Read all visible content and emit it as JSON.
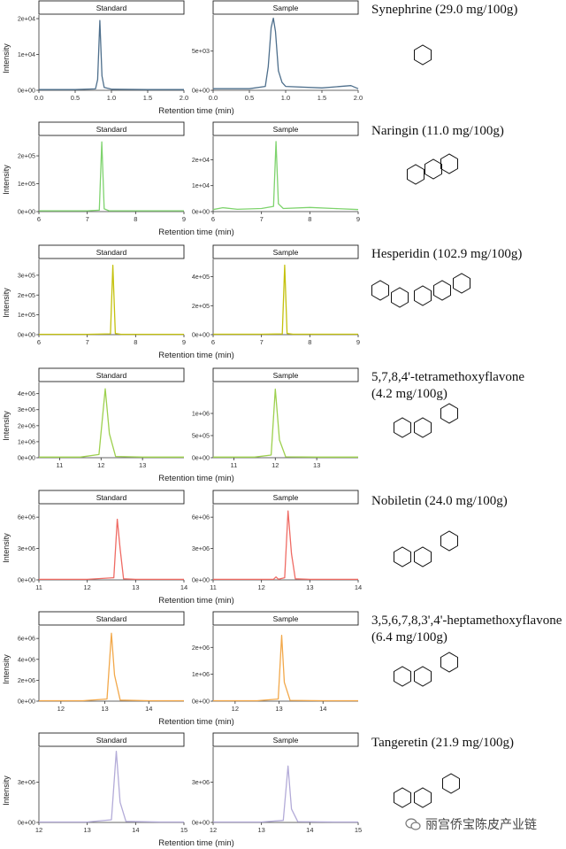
{
  "colors": {
    "synephrine": "#4e6f8c",
    "naringin": "#7ed36d",
    "hesperidin": "#c4c10d",
    "tetramethoxyflavone": "#9dd04e",
    "nobiletin": "#ef6b64",
    "heptamethoxyflavone": "#f2a84a",
    "tangeretin": "#b3abd8"
  },
  "chart_data": [
    {
      "type": "line",
      "id": "synephrine",
      "compound_label": "Synephrine (29.0 mg/100g)",
      "xlabel": "Retention time (min)",
      "ylabel": "Intensity",
      "panels": [
        {
          "strip": "Standard",
          "xlim": [
            0,
            2
          ],
          "xticks": [
            "0.0",
            "0.5",
            "1.0",
            "1.5",
            "2.0"
          ],
          "ylim": [
            0,
            21000
          ],
          "yticks": [
            0,
            10000,
            20000
          ],
          "ytick_labels": [
            "0e+00",
            "1e+04",
            "2e+04"
          ],
          "x": [
            0,
            0.5,
            0.78,
            0.81,
            0.84,
            0.87,
            0.9,
            1.0,
            1.5,
            2.0
          ],
          "y": [
            200,
            200,
            400,
            3000,
            19500,
            4000,
            800,
            300,
            200,
            200
          ]
        },
        {
          "strip": "Sample",
          "xlim": [
            0,
            2
          ],
          "xticks": [
            "0.0",
            "0.5",
            "1.0",
            "1.5",
            "2.0"
          ],
          "ylim": [
            0,
            9600
          ],
          "yticks": [
            0,
            5000
          ],
          "ytick_labels": [
            "0e+00",
            "5e+03"
          ],
          "x": [
            0,
            0.5,
            0.72,
            0.76,
            0.8,
            0.83,
            0.86,
            0.9,
            0.95,
            1.0,
            1.5,
            1.9,
            2.0
          ],
          "y": [
            200,
            200,
            500,
            3000,
            8000,
            9200,
            7500,
            2500,
            1000,
            500,
            300,
            600,
            200
          ]
        }
      ]
    },
    {
      "type": "line",
      "id": "naringin",
      "compound_label": "Naringin (11.0 mg/100g)",
      "xlabel": "Retention time (min)",
      "ylabel": "Intensity",
      "panels": [
        {
          "strip": "Standard",
          "xlim": [
            6,
            9
          ],
          "xticks": [
            "6",
            "7",
            "8",
            "9"
          ],
          "ylim": [
            0,
            270000
          ],
          "yticks": [
            0,
            100000,
            200000
          ],
          "ytick_labels": [
            "0e+00",
            "1e+05",
            "2e+05"
          ],
          "x": [
            6,
            7.0,
            7.25,
            7.3,
            7.35,
            7.45,
            8.0,
            9.0
          ],
          "y": [
            3000,
            3000,
            5000,
            250000,
            10000,
            3000,
            3000,
            3000
          ]
        },
        {
          "strip": "Sample",
          "xlim": [
            6,
            9
          ],
          "xticks": [
            "6",
            "7",
            "8",
            "9"
          ],
          "ylim": [
            0,
            29000
          ],
          "yticks": [
            0,
            10000,
            20000
          ],
          "ytick_labels": [
            "0e+00",
            "1e+04",
            "2e+04"
          ],
          "x": [
            6,
            6.2,
            6.5,
            7.0,
            7.25,
            7.3,
            7.35,
            7.45,
            8.0,
            8.5,
            9.0
          ],
          "y": [
            800,
            1500,
            900,
            1200,
            2000,
            27000,
            3000,
            1200,
            1600,
            1200,
            800
          ]
        }
      ]
    },
    {
      "type": "line",
      "id": "hesperidin",
      "compound_label": "Hesperidin (102.9 mg/100g)",
      "xlabel": "Retention time (min)",
      "ylabel": "Intensity",
      "panels": [
        {
          "strip": "Standard",
          "xlim": [
            6,
            9
          ],
          "xticks": [
            "6",
            "7",
            "8",
            "9"
          ],
          "ylim": [
            0,
            380000
          ],
          "yticks": [
            0,
            100000,
            200000,
            300000
          ],
          "ytick_labels": [
            "0e+00",
            "1e+05",
            "2e+05",
            "3e+05"
          ],
          "x": [
            6,
            7.0,
            7.48,
            7.53,
            7.58,
            7.7,
            8.0,
            9.0
          ],
          "y": [
            2000,
            2000,
            4000,
            350000,
            6000,
            2000,
            2000,
            2000
          ]
        },
        {
          "strip": "Sample",
          "xlim": [
            6,
            9
          ],
          "xticks": [
            "6",
            "7",
            "8",
            "9"
          ],
          "ylim": [
            0,
            520000
          ],
          "yticks": [
            0,
            200000,
            400000
          ],
          "ytick_labels": [
            "0e+00",
            "2e+05",
            "4e+05"
          ],
          "x": [
            6,
            7.0,
            7.43,
            7.48,
            7.53,
            7.65,
            8.0,
            9.0
          ],
          "y": [
            3000,
            3000,
            5000,
            480000,
            8000,
            3000,
            3000,
            3000
          ]
        }
      ]
    },
    {
      "type": "line",
      "id": "tetramethoxyflavone",
      "compound_label": "5,7,8,4'-tetramethoxyflavone",
      "compound_sub": "(4.2 mg/100g)",
      "xlabel": "Retention time (min)",
      "ylabel": "Intensity",
      "panels": [
        {
          "strip": "Standard",
          "xlim": [
            10.5,
            14
          ],
          "xticks": [
            "11",
            "12",
            "13"
          ],
          "xtick_values": [
            11,
            12,
            13
          ],
          "ylim": [
            0,
            4700000
          ],
          "yticks": [
            0,
            1000000,
            2000000,
            3000000,
            4000000
          ],
          "ytick_labels": [
            "0e+00",
            "1e+06",
            "2e+06",
            "3e+06",
            "4e+06"
          ],
          "x": [
            10.5,
            11.5,
            11.95,
            12.1,
            12.2,
            12.35,
            13.0,
            14.0
          ],
          "y": [
            40000,
            40000,
            200000,
            4300000,
            1500000,
            80000,
            40000,
            40000
          ]
        },
        {
          "strip": "Sample",
          "xlim": [
            10.5,
            14
          ],
          "xticks": [
            "11",
            "12",
            "13"
          ],
          "xtick_values": [
            11,
            12,
            13
          ],
          "ylim": [
            0,
            1700000
          ],
          "yticks": [
            0,
            500000,
            1000000
          ],
          "ytick_labels": [
            "0e+00",
            "5e+05",
            "1e+06"
          ],
          "x": [
            10.5,
            11.5,
            11.9,
            12.0,
            12.1,
            12.25,
            13.0,
            14.0
          ],
          "y": [
            15000,
            15000,
            60000,
            1550000,
            400000,
            20000,
            15000,
            15000
          ]
        }
      ]
    },
    {
      "type": "line",
      "id": "nobiletin",
      "compound_label": "Nobiletin (24.0 mg/100g)",
      "xlabel": "Retention time (min)",
      "ylabel": "Intensity",
      "panels": [
        {
          "strip": "Standard",
          "xlim": [
            11,
            14
          ],
          "xticks": [
            "11",
            "12",
            "13",
            "14"
          ],
          "ylim": [
            0,
            7200000
          ],
          "yticks": [
            0,
            3000000,
            6000000
          ],
          "ytick_labels": [
            "0e+00",
            "3e+06",
            "6e+06"
          ],
          "x": [
            11,
            12.0,
            12.55,
            12.62,
            12.68,
            12.75,
            13.0,
            14.0
          ],
          "y": [
            50000,
            50000,
            200000,
            5800000,
            3000000,
            100000,
            50000,
            50000
          ]
        },
        {
          "strip": "Sample",
          "xlim": [
            11,
            14
          ],
          "xticks": [
            "11",
            "12",
            "13",
            "14"
          ],
          "ylim": [
            0,
            7200000
          ],
          "yticks": [
            0,
            3000000,
            6000000
          ],
          "ytick_labels": [
            "0e+00",
            "3e+06",
            "6e+06"
          ],
          "x": [
            11,
            12.0,
            12.25,
            12.3,
            12.35,
            12.48,
            12.55,
            12.62,
            12.7,
            13.0,
            14.0
          ],
          "y": [
            50000,
            50000,
            60000,
            280000,
            60000,
            200000,
            6600000,
            2500000,
            100000,
            50000,
            50000
          ]
        }
      ]
    },
    {
      "type": "line",
      "id": "heptamethoxyflavone",
      "compound_label": "3,5,6,7,8,3',4'-heptamethoxyflavone",
      "compound_sub": "(6.4 mg/100g)",
      "xlabel": "Retention time (min)",
      "ylabel": "Intensity",
      "panels": [
        {
          "strip": "Standard",
          "xlim": [
            11.5,
            14.8
          ],
          "xticks": [
            "12",
            "13",
            "14"
          ],
          "xtick_values": [
            12,
            13,
            14
          ],
          "ylim": [
            0,
            7200000
          ],
          "yticks": [
            0,
            2000000,
            4000000,
            6000000
          ],
          "ytick_labels": [
            "0e+00",
            "2e+06",
            "4e+06",
            "6e+06"
          ],
          "x": [
            11.5,
            12.5,
            13.05,
            13.15,
            13.22,
            13.35,
            14.0,
            14.8
          ],
          "y": [
            40000,
            40000,
            200000,
            6500000,
            2500000,
            100000,
            40000,
            40000
          ]
        },
        {
          "strip": "Sample",
          "xlim": [
            11.5,
            14.8
          ],
          "xticks": [
            "12",
            "13",
            "14"
          ],
          "xtick_values": [
            12,
            13,
            14
          ],
          "ylim": [
            0,
            2800000
          ],
          "yticks": [
            0,
            1000000,
            2000000
          ],
          "ytick_labels": [
            "0e+00",
            "1e+06",
            "2e+06"
          ],
          "x": [
            11.5,
            12.5,
            12.98,
            13.06,
            13.12,
            13.25,
            14.0,
            14.8
          ],
          "y": [
            15000,
            15000,
            80000,
            2450000,
            700000,
            30000,
            15000,
            15000
          ]
        }
      ]
    },
    {
      "type": "line",
      "id": "tangeretin",
      "compound_label": "Tangeretin (21.9 mg/100g)",
      "xlabel": "Retention time (min)",
      "ylabel": "Intensity",
      "panels": [
        {
          "strip": "Standard",
          "xlim": [
            12,
            15
          ],
          "xticks": [
            "12",
            "13",
            "14",
            "15"
          ],
          "ylim": [
            0,
            5600000
          ],
          "yticks": [
            0,
            3000000
          ],
          "ytick_labels": [
            "0e+00",
            "3e+06"
          ],
          "x": [
            12,
            13.0,
            13.5,
            13.6,
            13.68,
            13.8,
            14.5,
            15.0
          ],
          "y": [
            30000,
            30000,
            200000,
            5300000,
            1500000,
            80000,
            30000,
            30000
          ]
        },
        {
          "strip": "Sample",
          "xlim": [
            12,
            15
          ],
          "xticks": [
            "12",
            "13",
            "14",
            "15"
          ],
          "ylim": [
            0,
            5600000
          ],
          "yticks": [
            0,
            3000000
          ],
          "ytick_labels": [
            "0e+00",
            "3e+06"
          ],
          "x": [
            12,
            13.0,
            13.45,
            13.55,
            13.62,
            13.75,
            14.5,
            15.0
          ],
          "y": [
            30000,
            30000,
            150000,
            4200000,
            1000000,
            60000,
            30000,
            30000
          ]
        }
      ]
    }
  ],
  "watermark": {
    "text": "丽宫侨宝陈皮产业链",
    "icon": "wechat-icon"
  }
}
